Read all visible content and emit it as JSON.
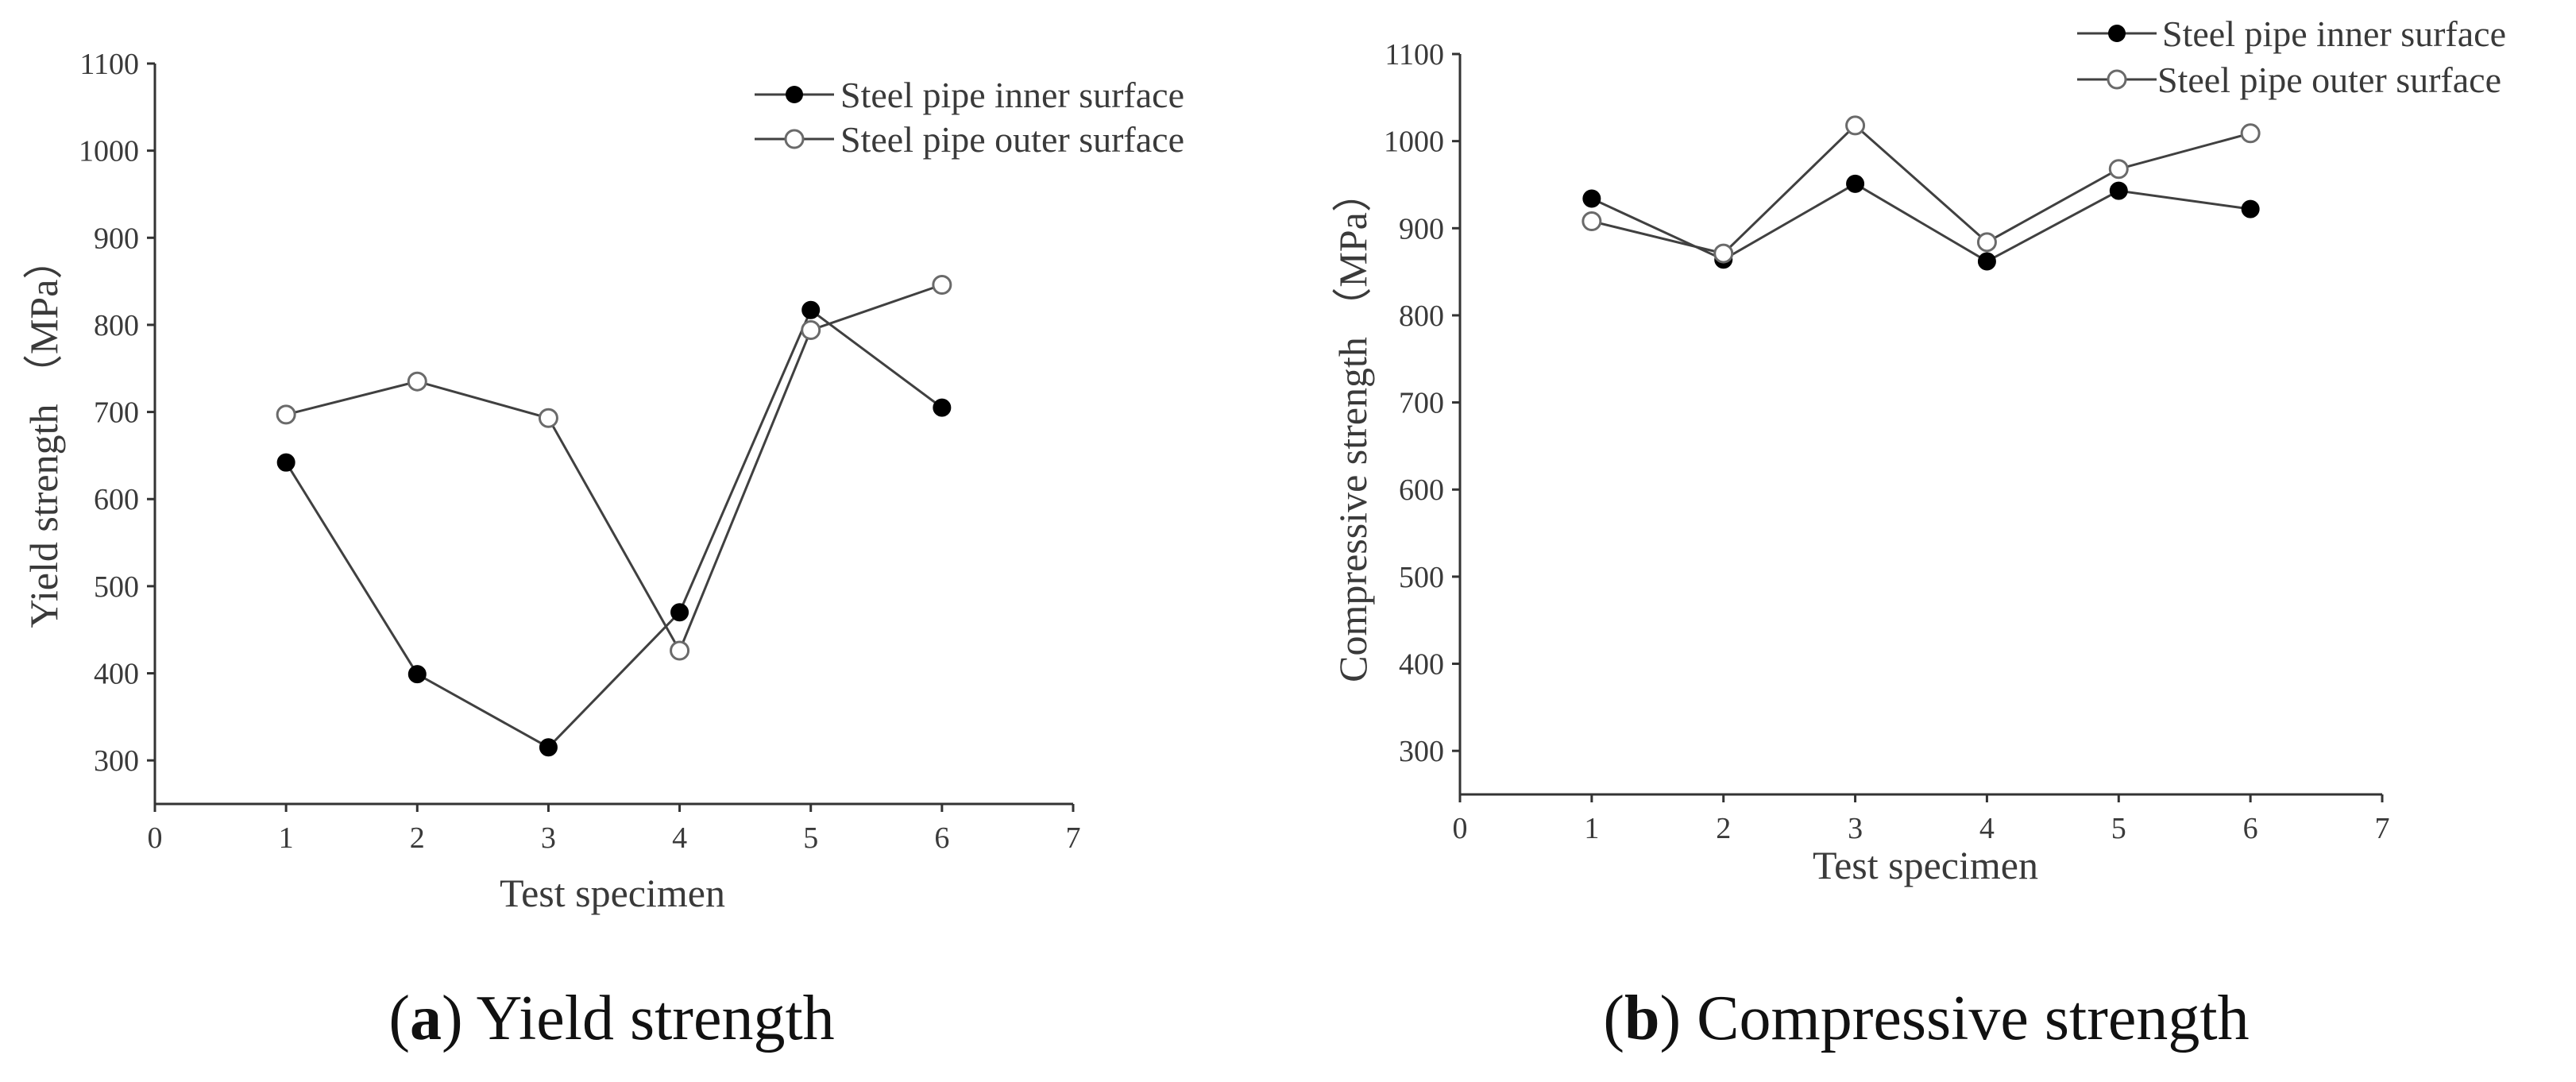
{
  "colors": {
    "line": "#404040",
    "axis": "#333333",
    "marker_filled": "#000000",
    "marker_open_fill": "#ffffff",
    "marker_open_stroke": "#6a6a6a",
    "text": "#3a3a3a"
  },
  "chart_data": [
    {
      "type": "line",
      "title": "",
      "caption": {
        "letter": "a",
        "text": "Yield strength"
      },
      "xlabel": "Test specimen",
      "ylabel": "Yield strength （MPa）",
      "xlim": [
        0,
        7
      ],
      "ylim": [
        250,
        1100
      ],
      "x_ticks": [
        "0",
        "1",
        "2",
        "3",
        "4",
        "5",
        "6",
        "7"
      ],
      "y_ticks": [
        "300",
        "400",
        "500",
        "600",
        "700",
        "800",
        "900",
        "1000",
        "1100"
      ],
      "grid": false,
      "legend_position": "top-right",
      "series": [
        {
          "name": "Steel pipe inner surface",
          "marker": "filled",
          "x": [
            1,
            2,
            3,
            4,
            5,
            6
          ],
          "values": [
            642,
            399,
            315,
            470,
            817,
            705
          ]
        },
        {
          "name": "Steel pipe outer surface",
          "marker": "open",
          "x": [
            1,
            2,
            3,
            4,
            5,
            6
          ],
          "values": [
            697,
            735,
            693,
            426,
            794,
            846
          ]
        }
      ]
    },
    {
      "type": "line",
      "title": "",
      "caption": {
        "letter": "b",
        "text": "Compressive strength"
      },
      "xlabel": "Test specimen",
      "ylabel": "Compressive strength （MPa）",
      "xlim": [
        0,
        7
      ],
      "ylim": [
        250,
        1100
      ],
      "x_ticks": [
        "0",
        "1",
        "2",
        "3",
        "4",
        "5",
        "6",
        "7"
      ],
      "y_ticks": [
        "300",
        "400",
        "500",
        "600",
        "700",
        "800",
        "900",
        "1000",
        "1100"
      ],
      "grid": false,
      "legend_position": "top-right",
      "series": [
        {
          "name": "Steel pipe inner surface",
          "marker": "filled",
          "x": [
            1,
            2,
            3,
            4,
            5,
            6
          ],
          "values": [
            934,
            864,
            951,
            862,
            943,
            922
          ]
        },
        {
          "name": "Steel pipe outer surface",
          "marker": "open",
          "x": [
            1,
            2,
            3,
            4,
            5,
            6
          ],
          "values": [
            908,
            871,
            1018,
            884,
            968,
            1009
          ]
        }
      ]
    }
  ]
}
